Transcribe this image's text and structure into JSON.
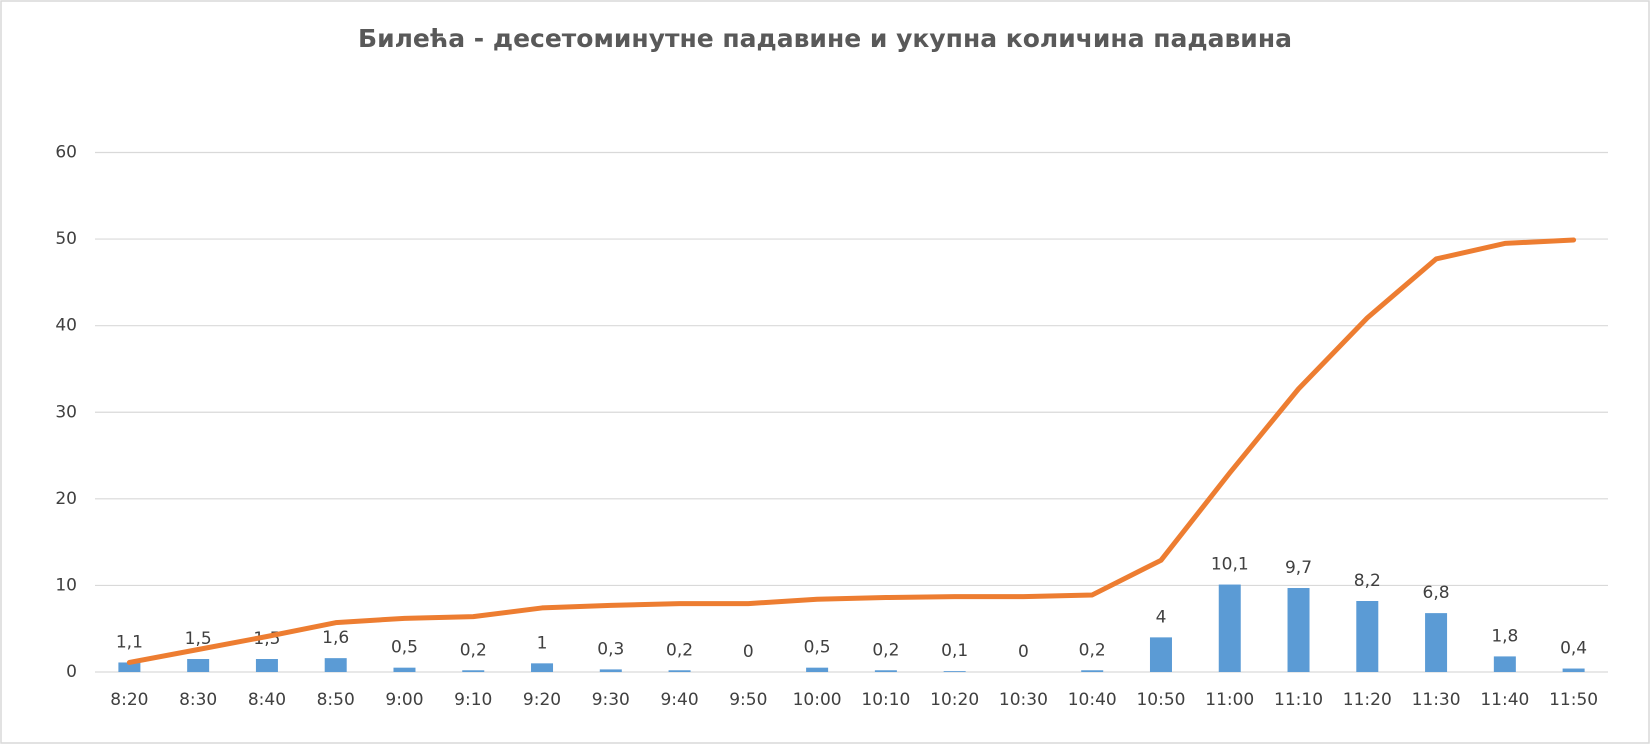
{
  "chart_data": {
    "type": "bar-line",
    "title": "Билећа - десетоминутне падавине и укупна количина падавина",
    "categories": [
      "8:20",
      "8:30",
      "8:40",
      "8:50",
      "9:00",
      "9:10",
      "9:20",
      "9:30",
      "9:40",
      "9:50",
      "10:00",
      "10:10",
      "10:20",
      "10:30",
      "10:40",
      "10:50",
      "11:00",
      "11:10",
      "11:20",
      "11:30",
      "11:40",
      "11:50"
    ],
    "series": [
      {
        "type": "bar",
        "color": "#5b9bd5",
        "values": [
          1.1,
          1.5,
          1.5,
          1.6,
          0.5,
          0.2,
          1,
          0.3,
          0.2,
          0,
          0.5,
          0.2,
          0.1,
          0,
          0.2,
          4,
          10.1,
          9.7,
          8.2,
          6.8,
          1.8,
          0.4
        ],
        "value_labels": [
          "1,1",
          "1,5",
          "1,5",
          "1,6",
          "0,5",
          "0,2",
          "1",
          "0,3",
          "0,2",
          "0",
          "0,5",
          "0,2",
          "0,1",
          "0",
          "0,2",
          "4",
          "10,1",
          "9,7",
          "8,2",
          "6,8",
          "1,8",
          "0,4"
        ]
      },
      {
        "type": "line",
        "color": "#ed7d31",
        "values": [
          1.1,
          2.6,
          4.1,
          5.7,
          6.2,
          6.4,
          7.4,
          7.7,
          7.9,
          7.9,
          8.4,
          8.6,
          8.7,
          8.7,
          8.9,
          12.9,
          23.0,
          32.7,
          40.9,
          47.7,
          49.5,
          49.9
        ]
      }
    ],
    "ylim": [
      0,
      60
    ],
    "yticks": [
      0,
      10,
      20,
      30,
      40,
      50,
      60
    ],
    "grid": true
  }
}
